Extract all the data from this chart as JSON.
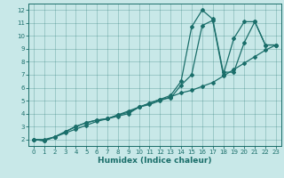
{
  "title": "",
  "xlabel": "Humidex (Indice chaleur)",
  "bg_color": "#c8e8e8",
  "line_color": "#1a6e6a",
  "grid_color": "#1a6e6a",
  "xlim": [
    -0.5,
    23.5
  ],
  "ylim": [
    1.5,
    12.5
  ],
  "xticks": [
    0,
    1,
    2,
    3,
    4,
    5,
    6,
    7,
    8,
    9,
    10,
    11,
    12,
    13,
    14,
    15,
    16,
    17,
    18,
    19,
    20,
    21,
    22,
    23
  ],
  "yticks": [
    2,
    3,
    4,
    5,
    6,
    7,
    8,
    9,
    10,
    11,
    12
  ],
  "line1_x": [
    0,
    1,
    2,
    3,
    4,
    5,
    6,
    7,
    8,
    9,
    10,
    11,
    12,
    13,
    14,
    15,
    16,
    17,
    18,
    19,
    20,
    21,
    22,
    23
  ],
  "line1_y": [
    2.0,
    2.0,
    2.2,
    2.5,
    2.8,
    3.1,
    3.4,
    3.6,
    3.9,
    4.2,
    4.5,
    4.7,
    5.0,
    5.3,
    5.6,
    5.8,
    6.1,
    6.4,
    6.9,
    7.4,
    7.9,
    8.4,
    8.9,
    9.3
  ],
  "line2_x": [
    0,
    1,
    2,
    3,
    4,
    5,
    6,
    7,
    8,
    9,
    10,
    11,
    12,
    13,
    14,
    15,
    16,
    17,
    18,
    19,
    20,
    21,
    22,
    23
  ],
  "line2_y": [
    2.0,
    1.9,
    2.2,
    2.6,
    3.0,
    3.3,
    3.5,
    3.6,
    3.8,
    4.0,
    4.5,
    4.8,
    5.1,
    5.2,
    6.2,
    7.0,
    10.8,
    11.2,
    7.0,
    9.8,
    11.1,
    11.1,
    9.3,
    9.3
  ],
  "line3_x": [
    0,
    1,
    2,
    3,
    4,
    5,
    6,
    7,
    8,
    9,
    10,
    11,
    12,
    13,
    14,
    15,
    16,
    17,
    18,
    19,
    20,
    21,
    22,
    23
  ],
  "line3_y": [
    2.0,
    1.9,
    2.2,
    2.6,
    3.0,
    3.3,
    3.5,
    3.6,
    3.9,
    4.1,
    4.5,
    4.8,
    5.1,
    5.4,
    6.5,
    10.7,
    12.0,
    11.3,
    7.2,
    7.2,
    9.5,
    11.1,
    9.3,
    9.3
  ],
  "xlabel_fontsize": 6.5,
  "tick_fontsize": 5.0,
  "linewidth": 0.9,
  "markersize": 2.0
}
